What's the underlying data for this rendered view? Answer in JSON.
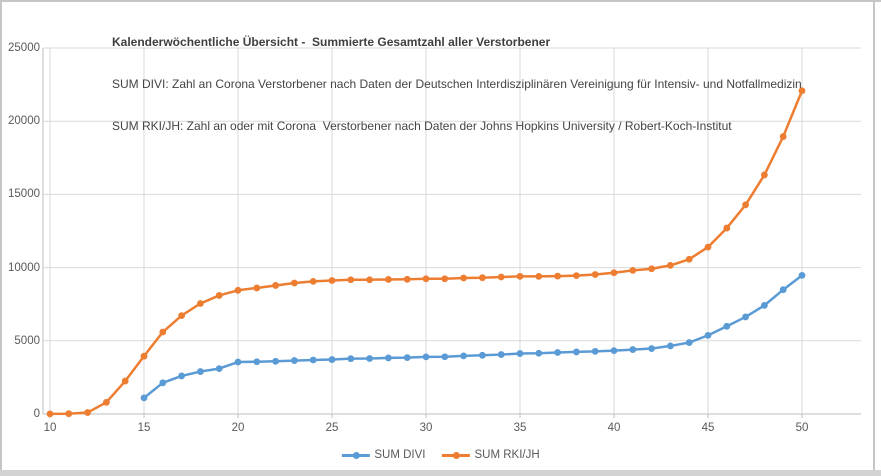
{
  "title": {
    "line1": "Kalenderwöchentliche Übersicht -  Summierte Gesamtzahl aller Verstorbener",
    "line2": "SUM DIVI: Zahl an Corona Verstorbener nach Daten der Deutschen Interdisziplinären Vereinigung für Intensiv- und Notfallmedizin",
    "line3": "SUM RKI/JH: Zahl an oder mit Corona  Verstorbener nach Daten der Johns Hopkins University / Robert-Koch-Institut"
  },
  "colors": {
    "divi_blue": "#5B9BD5",
    "rki_orange": "#ED7D31",
    "gridline": "#D9D9D9",
    "axis_line": "#BFBFBF",
    "tick_text": "#595959",
    "title_text": "#3F3F3F",
    "window_edge": "#C6C6C6",
    "bottom_bar": "#D2D2D2"
  },
  "legend": {
    "items": [
      {
        "label": "SUM DIVI",
        "color": "#5B9BD5"
      },
      {
        "label": "SUM RKI/JH",
        "color": "#ED7D31"
      }
    ]
  },
  "chart_data": {
    "type": "line",
    "title": "Kalenderwöchentliche Übersicht -  Summierte Gesamtzahl aller Verstorbener",
    "subtitle_lines": [
      "SUM DIVI: Zahl an Corona Verstorbener nach Daten der Deutschen Interdisziplinären Vereinigung für Intensiv- und Notfallmedizin",
      "SUM RKI/JH: Zahl an oder mit Corona  Verstorbener nach Daten der Johns Hopkins University / Robert-Koch-Institut"
    ],
    "xlabel": "",
    "ylabel": "",
    "x_ticks": [
      10,
      15,
      20,
      25,
      30,
      35,
      40,
      45,
      50
    ],
    "y_ticks": [
      0,
      5000,
      10000,
      15000,
      20000,
      25000
    ],
    "xlim": [
      9.63,
      53.14
    ],
    "ylim": [
      0,
      25000
    ],
    "grid": true,
    "legend_position": "bottom-center",
    "marker": "circle",
    "series": [
      {
        "name": "SUM DIVI",
        "color": "#5B9BD5",
        "x": [
          15,
          16,
          17,
          18,
          19,
          20,
          21,
          22,
          23,
          24,
          25,
          26,
          27,
          28,
          29,
          30,
          31,
          32,
          33,
          34,
          35,
          36,
          37,
          38,
          39,
          40,
          41,
          42,
          43,
          44,
          45,
          46,
          47,
          48,
          49,
          50
        ],
        "values": [
          1100,
          2130,
          2600,
          2900,
          3100,
          3550,
          3570,
          3600,
          3650,
          3690,
          3720,
          3780,
          3790,
          3830,
          3850,
          3900,
          3910,
          3970,
          4010,
          4060,
          4130,
          4150,
          4200,
          4240,
          4280,
          4330,
          4400,
          4470,
          4650,
          4880,
          5370,
          5990,
          6630,
          7420,
          8490,
          9470
        ]
      },
      {
        "name": "SUM RKI/JH",
        "color": "#ED7D31",
        "x": [
          10,
          11,
          12,
          13,
          14,
          15,
          16,
          17,
          18,
          19,
          20,
          21,
          22,
          23,
          24,
          25,
          26,
          27,
          28,
          29,
          30,
          31,
          32,
          33,
          34,
          35,
          36,
          37,
          38,
          39,
          40,
          41,
          42,
          43,
          44,
          45,
          46,
          47,
          48,
          49,
          50
        ],
        "values": [
          10,
          20,
          100,
          800,
          2250,
          3950,
          5600,
          6720,
          7550,
          8100,
          8450,
          8610,
          8780,
          8950,
          9060,
          9120,
          9170,
          9170,
          9190,
          9200,
          9240,
          9240,
          9290,
          9310,
          9360,
          9400,
          9400,
          9420,
          9450,
          9530,
          9650,
          9810,
          9920,
          10150,
          10570,
          11400,
          12700,
          14290,
          16330,
          18950,
          22080
        ]
      }
    ]
  }
}
